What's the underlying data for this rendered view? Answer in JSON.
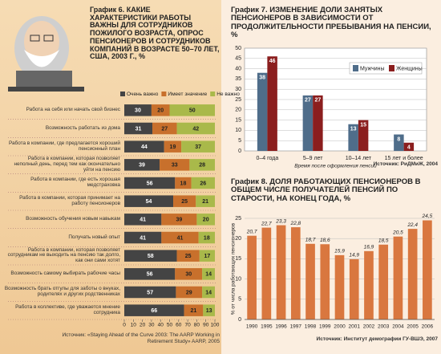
{
  "chart_data": [
    {
      "type": "hbar-stacked",
      "label": "График 6.",
      "title": "Какие характеристики работы важны для сотрудников пожилого возраста, опрос пенсионеров и сотрудников компаний в возрасте 50–70 лет, США, 2003 г., %",
      "categories": [
        "Работа на себя или начать свой бизнес",
        "Возможность работать из дома",
        "Работа в компании, где предлагается хороший пенсионный план",
        "Работа в компании, которая позволяет неполный день, перед тем как окончательно уйти на пенсию",
        "Работа в компании, где есть хорошая медстраховка",
        "Работа в компании, которая принимает на работу пенсионеров",
        "Возможность обучения новым навыкам",
        "Получать новый опыт",
        "Работа в компании, которая позволяет сотрудникам не выходить на пенсию так долго, как они сами хотят",
        "Возможность самому выбирать рабочие часы",
        "Возможность брать отгулы для заботы о внуках, родителях и других родственниках",
        "Работа в коллективе, где уважается мнение сотрудника"
      ],
      "series": [
        {
          "name": "Очень важно",
          "color": "#444444",
          "values": [
            30,
            31,
            44,
            39,
            56,
            54,
            41,
            41,
            58,
            56,
            57,
            66
          ]
        },
        {
          "name": "Имеет значение",
          "color": "#c8702c",
          "values": [
            20,
            27,
            19,
            33,
            18,
            25,
            39,
            41,
            25,
            30,
            29,
            21
          ]
        },
        {
          "name": "Не важно",
          "color": "#a9b94a",
          "values": [
            50,
            42,
            37,
            28,
            26,
            21,
            20,
            18,
            17,
            14,
            14,
            13
          ]
        }
      ],
      "xlim": [
        0,
        100
      ],
      "xticks": [
        0,
        10,
        20,
        30,
        40,
        50,
        60,
        70,
        80,
        90,
        100
      ],
      "legend_position": "top",
      "source": "Источник: «Staying Ahead of the Curve 2003: The AARP Working in Retirement Study» AARP, 2005"
    },
    {
      "type": "grouped-bar",
      "label": "График 7.",
      "title": "Изменение доли занятых пенсионеров в зависимости от продолжительности пребывания на пенсии, %",
      "categories": [
        "0–4 года",
        "5–9 лет",
        "10–14 лет",
        "15 лет и более"
      ],
      "series": [
        {
          "name": "Мужчины",
          "color": "#4f6d8a",
          "values": [
            38,
            27,
            13,
            8
          ]
        },
        {
          "name": "Женщины",
          "color": "#8b1e1e",
          "values": [
            46,
            27,
            15,
            4
          ]
        }
      ],
      "ylim": [
        0,
        50
      ],
      "yticks": [
        0,
        5,
        10,
        15,
        20,
        25,
        30,
        35,
        40,
        45,
        50
      ],
      "grid": true,
      "legend_position": "upper right",
      "xlabel": "Время после оформления пенсии",
      "source": "Источник: РиДМиЖ, 2004"
    },
    {
      "type": "bar",
      "label": "График 8.",
      "title": "Доля работающих пенсионеров в общем числе получателей пенсий по старости, на конец года, %",
      "categories": [
        "1990",
        "1995",
        "1996",
        "1997",
        "1998",
        "1999",
        "2000",
        "2001",
        "2002",
        "2003",
        "2004",
        "2005",
        "2006"
      ],
      "values": [
        20.7,
        22.7,
        23.3,
        22.8,
        18.7,
        18.6,
        15.9,
        14.9,
        16.9,
        18.5,
        20.5,
        22.4,
        24.5
      ],
      "value_labels": [
        "20,7",
        "22,7",
        "23,3",
        "22,8",
        "18,7",
        "18,6",
        "15,9",
        "14,9",
        "16,9",
        "18,5",
        "20,5",
        "22,4",
        "24,5"
      ],
      "color": "#d9773f",
      "ylim": [
        0,
        25
      ],
      "yticks": [
        0,
        5,
        10,
        15,
        20,
        25
      ],
      "grid": true,
      "ylabel": "% от числа работающих пенсионеров",
      "source": "Источник: Институт демографии ГУ-ВШЭ, 2007"
    }
  ]
}
